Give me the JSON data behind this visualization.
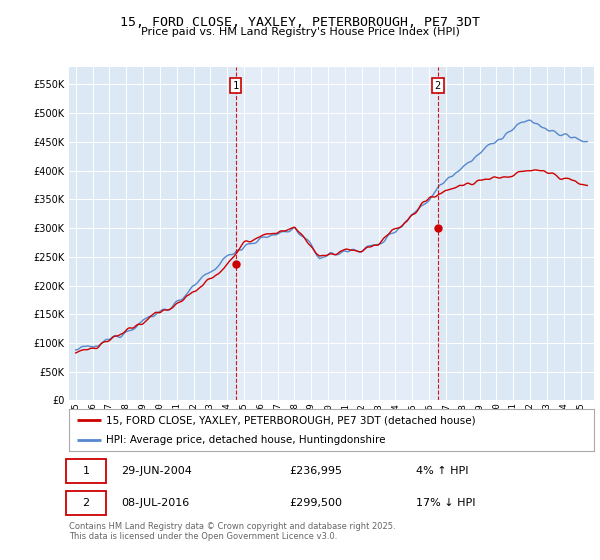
{
  "title1": "15, FORD CLOSE, YAXLEY, PETERBOROUGH, PE7 3DT",
  "title2": "Price paid vs. HM Land Registry's House Price Index (HPI)",
  "legend1": "15, FORD CLOSE, YAXLEY, PETERBOROUGH, PE7 3DT (detached house)",
  "legend2": "HPI: Average price, detached house, Huntingdonshire",
  "annotation1_date": "29-JUN-2004",
  "annotation1_price": "£236,995",
  "annotation1_hpi": "4% ↑ HPI",
  "annotation2_date": "08-JUL-2016",
  "annotation2_price": "£299,500",
  "annotation2_hpi": "17% ↓ HPI",
  "footer": "Contains HM Land Registry data © Crown copyright and database right 2025.\nThis data is licensed under the Open Government Licence v3.0.",
  "ylim_max": 580000,
  "ylim_min": 0,
  "plot_bg": "#dde8f5",
  "shade_bg": "#e8f0fa",
  "red_color": "#cc0000",
  "blue_color": "#5588cc",
  "vline_color": "#cc0000",
  "purchase1_year": 2004.5,
  "purchase1_price": 236995,
  "purchase2_year": 2016.52,
  "purchase2_price": 299500,
  "grid_color": "#ffffff",
  "title_font": "DejaVu Sans",
  "mono_font": "DejaVu Sans Mono"
}
